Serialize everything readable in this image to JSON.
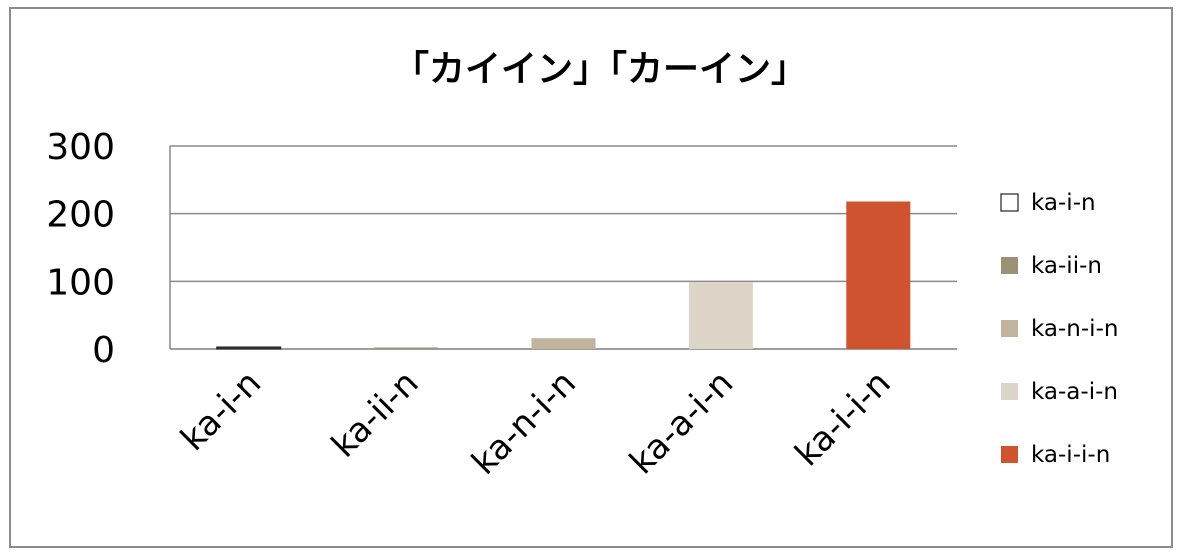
{
  "chart_data": {
    "type": "bar",
    "title": "「カイイン」「カーイン」",
    "categories": [
      "ka-i-n",
      "ka-ii-n",
      "ka-n-i-n",
      "ka-a-i-n",
      "ka-i-i-n"
    ],
    "values": [
      3,
      1,
      16,
      99,
      218
    ],
    "colors": [
      "#3a3a3a",
      "#9c9174",
      "#c0b59c",
      "#ddd5c8",
      "#d0532f"
    ],
    "legend": [
      "ka-i-n",
      "ka-ii-n",
      "ka-n-i-n",
      "ka-a-i-n",
      "ka-i-i-n"
    ],
    "legend_colors": [
      "#ffffff",
      "#9c9174",
      "#c0b59c",
      "#ddd5c8",
      "#d0532f"
    ],
    "legend_placement": "right",
    "ylim": [
      0,
      300
    ],
    "yticks": [
      0,
      100,
      200,
      300
    ],
    "grid": true
  }
}
